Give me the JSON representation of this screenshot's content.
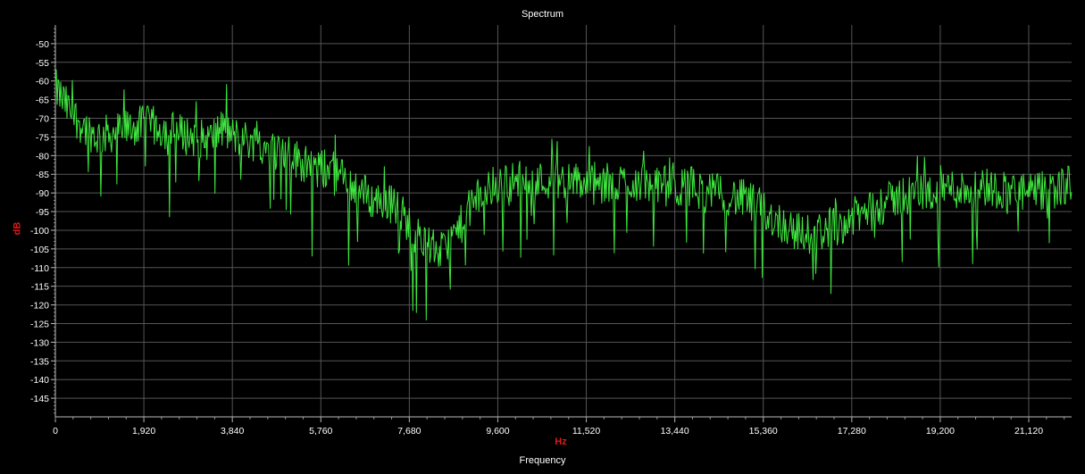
{
  "chart_data": {
    "type": "line",
    "title": "Spectrum",
    "xlabel": "Frequency",
    "x_unit": "Hz",
    "ylabel": "dB",
    "xlim": [
      0,
      22050
    ],
    "ylim": [
      -150,
      -45
    ],
    "x_ticks": [
      0,
      1920,
      3840,
      5760,
      7680,
      9600,
      11520,
      13440,
      15360,
      17280,
      19200,
      21120
    ],
    "x_tick_labels": [
      "0",
      "1,920",
      "3,840",
      "5,760",
      "7,680",
      "9,600",
      "11,520",
      "13,440",
      "15,360",
      "17,280",
      "19,200",
      "21,120"
    ],
    "y_ticks": [
      -50,
      -55,
      -60,
      -65,
      -70,
      -75,
      -80,
      -85,
      -90,
      -95,
      -100,
      -105,
      -110,
      -115,
      -120,
      -125,
      -130,
      -135,
      -140,
      -145
    ],
    "grid": true,
    "series": [
      {
        "color": "#3ee83e",
        "x": [
          0,
          300,
          600,
          900,
          1200,
          1500,
          1800,
          2100,
          2400,
          2700,
          3000,
          3300,
          3600,
          3900,
          4200,
          4500,
          4800,
          5100,
          5400,
          5700,
          6000,
          6300,
          6600,
          6900,
          7200,
          7500,
          7800,
          8100,
          8400,
          8700,
          9000,
          9300,
          9600,
          9900,
          10200,
          10500,
          10800,
          11100,
          11400,
          11700,
          12000,
          12300,
          12600,
          12900,
          13200,
          13500,
          13800,
          14100,
          14400,
          14700,
          15000,
          15300,
          15600,
          15900,
          16200,
          16500,
          16800,
          17100,
          17400,
          17700,
          18000,
          18300,
          18600,
          18900,
          19200,
          19500,
          19800,
          20100,
          20400,
          20700,
          21000,
          21300,
          21600,
          21900
        ],
        "y": [
          -62,
          -68,
          -72,
          -75,
          -74,
          -73,
          -72,
          -72,
          -73,
          -74,
          -75,
          -76,
          -73,
          -75,
          -76,
          -77,
          -79,
          -80,
          -82,
          -84,
          -83,
          -87,
          -89,
          -92,
          -92,
          -95,
          -101,
          -104,
          -106,
          -101,
          -94,
          -90,
          -88,
          -87,
          -86,
          -87,
          -86,
          -87,
          -87,
          -88,
          -89,
          -87,
          -87,
          -88,
          -88,
          -89,
          -88,
          -90,
          -90,
          -91,
          -92,
          -94,
          -97,
          -99,
          -101,
          -101,
          -99,
          -98,
          -96,
          -95,
          -93,
          -91,
          -90,
          -90,
          -88,
          -89,
          -89,
          -88,
          -89,
          -89,
          -90,
          -90,
          -89,
          -88
        ]
      }
    ]
  }
}
